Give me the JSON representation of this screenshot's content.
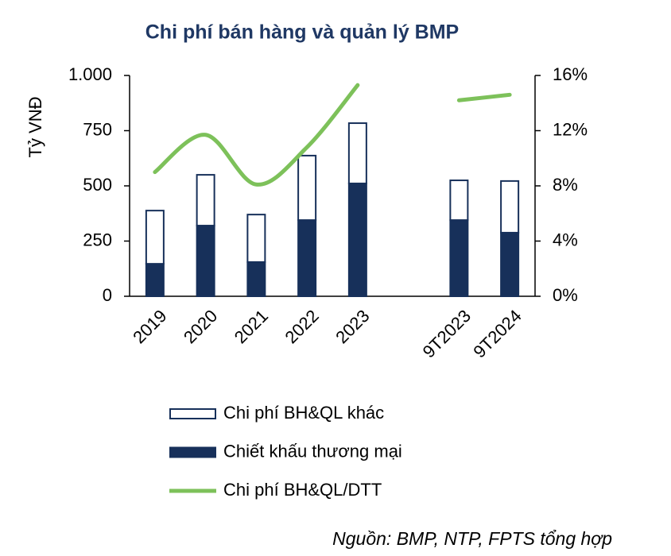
{
  "chart_data": {
    "type": "bar_line",
    "title": "Chi phí bán hàng và quản lý BMP",
    "y_label": "Tỷ VNĐ",
    "source": "Nguồn: BMP, NTP, FPTS tổng hợp",
    "categories": [
      "2019",
      "2020",
      "2021",
      "2022",
      "2023",
      null,
      "9T2023",
      "9T2024"
    ],
    "series": [
      {
        "name": "Chi phí BH&QL khác",
        "type": "bar",
        "color": "#ffffff",
        "stroke": "#17305a",
        "values": [
          241,
          230,
          215,
          292,
          273,
          null,
          180,
          234
        ]
      },
      {
        "name": "Chiết khấu thương mại",
        "type": "bar",
        "color": "#17305a",
        "values": [
          147,
          320,
          155,
          345,
          511,
          null,
          345,
          288
        ]
      },
      {
        "name": "Chi phí BH&QL/DTT",
        "type": "line",
        "axis": "y2",
        "color": "#7dc15a",
        "values": [
          9.0,
          11.7,
          8.1,
          10.8,
          15.3,
          null,
          14.2,
          14.6
        ]
      }
    ],
    "ylim": [
      0,
      1000
    ],
    "yticks": [
      0,
      250,
      500,
      750,
      {
        "value": 1000,
        "label": "1.000"
      }
    ],
    "y2lim": [
      0,
      16
    ],
    "y2ticks": [
      {
        "value": 0,
        "label": "0%"
      },
      {
        "value": 4,
        "label": "4%"
      },
      {
        "value": 8,
        "label": "8%"
      },
      {
        "value": 12,
        "label": "12%"
      },
      {
        "value": 16,
        "label": "16%"
      }
    ],
    "stacked": true
  }
}
